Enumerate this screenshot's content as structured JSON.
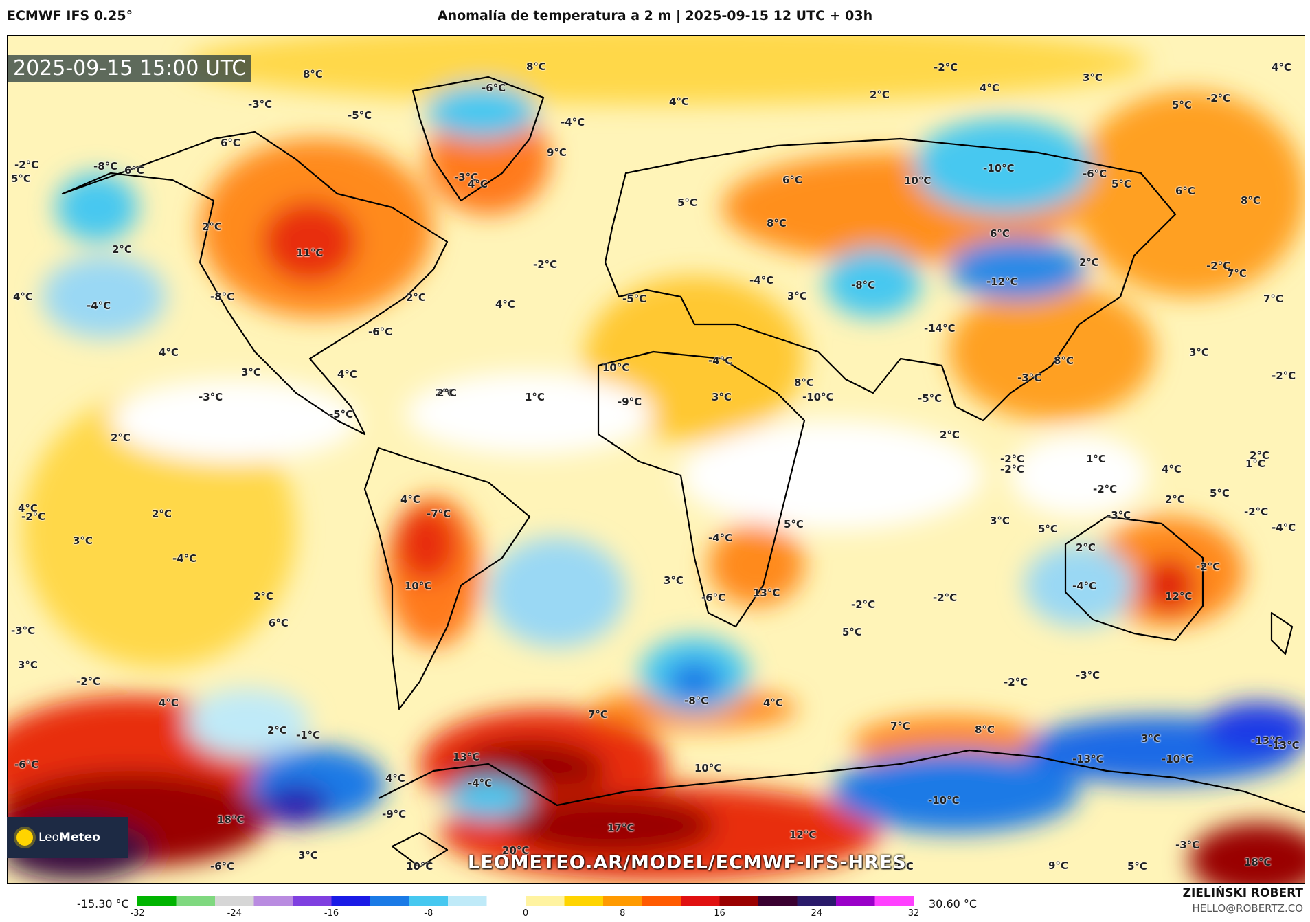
{
  "header": {
    "model": "ECMWF IFS 0.25°",
    "title": "Anomalía de temperatura a 2 m | 2025-09-15 12 UTC + 03h"
  },
  "map": {
    "valid_time": "2025-09-15 15:00 UTC",
    "watermark": "LEOMETEO.AR/MODEL/ECMWF-IFS-HRES",
    "labels": [
      {
        "text": "8°C"
      },
      {
        "text": "8°C"
      },
      {
        "text": "-6°C"
      },
      {
        "text": "-4°C"
      },
      {
        "text": "9°C"
      },
      {
        "text": "4°C"
      },
      {
        "text": "-2°C"
      },
      {
        "text": "2°C"
      },
      {
        "text": "4°C"
      },
      {
        "text": "3°C"
      },
      {
        "text": "5°C"
      },
      {
        "text": "-2°C"
      },
      {
        "text": "4°C"
      },
      {
        "text": "-3°C"
      },
      {
        "text": "-5°C"
      },
      {
        "text": "6°C"
      },
      {
        "text": "-2°C"
      },
      {
        "text": "-8°C"
      },
      {
        "text": "6°C"
      },
      {
        "text": "5°C"
      },
      {
        "text": "-3°C"
      },
      {
        "text": "4°C"
      },
      {
        "text": "5°C"
      },
      {
        "text": "6°C"
      },
      {
        "text": "2°C"
      },
      {
        "text": "11°C"
      },
      {
        "text": "2°C"
      },
      {
        "text": "-2°C"
      },
      {
        "text": "4°C"
      },
      {
        "text": "-4°C"
      },
      {
        "text": "-8°C"
      },
      {
        "text": "2°C"
      },
      {
        "text": "4°C"
      },
      {
        "text": "-6°C"
      },
      {
        "text": "4°C"
      },
      {
        "text": "3°C"
      },
      {
        "text": "4°C"
      },
      {
        "text": "2°C"
      },
      {
        "text": "-3°C"
      },
      {
        "text": "-5°C"
      },
      {
        "text": "2°C"
      },
      {
        "text": "1°C"
      },
      {
        "text": "2°C"
      },
      {
        "text": "10°C"
      },
      {
        "text": "-10°C"
      },
      {
        "text": "-6°C"
      },
      {
        "text": "5°C"
      },
      {
        "text": "6°C"
      },
      {
        "text": "8°C"
      },
      {
        "text": "8°C"
      },
      {
        "text": "6°C"
      },
      {
        "text": "-12°C"
      },
      {
        "text": "-8°C"
      },
      {
        "text": "2°C"
      },
      {
        "text": "-2°C"
      },
      {
        "text": "7°C"
      },
      {
        "text": "7°C"
      },
      {
        "text": "-5°C"
      },
      {
        "text": "-4°C"
      },
      {
        "text": "3°C"
      },
      {
        "text": "-14°C"
      },
      {
        "text": "8°C"
      },
      {
        "text": "3°C"
      },
      {
        "text": "-2°C"
      },
      {
        "text": "10°C"
      },
      {
        "text": "-4°C"
      },
      {
        "text": "-9°C"
      },
      {
        "text": "3°C"
      },
      {
        "text": "-10°C"
      },
      {
        "text": "-5°C"
      },
      {
        "text": "8°C"
      },
      {
        "text": "-3°C"
      },
      {
        "text": "2°C"
      },
      {
        "text": "-2°C"
      },
      {
        "text": "1°C"
      },
      {
        "text": "4°C"
      },
      {
        "text": "2°C"
      },
      {
        "text": "2°C"
      },
      {
        "text": "5°C"
      },
      {
        "text": "-4°C"
      },
      {
        "text": "-7°C"
      },
      {
        "text": "4°C"
      },
      {
        "text": "-2°C"
      },
      {
        "text": "-2°C"
      },
      {
        "text": "1°C"
      },
      {
        "text": "-2°C"
      },
      {
        "text": "3°C"
      },
      {
        "text": "2°C"
      },
      {
        "text": "-4°C"
      },
      {
        "text": "5°C"
      },
      {
        "text": "-6°C"
      },
      {
        "text": "3°C"
      },
      {
        "text": "-3°C"
      },
      {
        "text": "-2°C"
      },
      {
        "text": "12°C"
      },
      {
        "text": "-4°C"
      },
      {
        "text": "-2°C"
      },
      {
        "text": "4°C"
      },
      {
        "text": "-2°C"
      },
      {
        "text": "2°C"
      },
      {
        "text": "3°C"
      },
      {
        "text": "-4°C"
      },
      {
        "text": "10°C"
      },
      {
        "text": "13°C"
      },
      {
        "text": "2°C"
      },
      {
        "text": "6°C"
      },
      {
        "text": "-3°C"
      },
      {
        "text": "5°C"
      },
      {
        "text": "-2°C"
      },
      {
        "text": "5°C"
      },
      {
        "text": "-3°C"
      },
      {
        "text": "-2°C"
      },
      {
        "text": "3°C"
      },
      {
        "text": "-2°C"
      },
      {
        "text": "4°C"
      },
      {
        "text": "-8°C"
      },
      {
        "text": "4°C"
      },
      {
        "text": "7°C"
      },
      {
        "text": "7°C"
      },
      {
        "text": "8°C"
      },
      {
        "text": "3°C"
      },
      {
        "text": "-13°C"
      },
      {
        "text": "2°C"
      },
      {
        "text": "-1°C"
      },
      {
        "text": "-6°C"
      },
      {
        "text": "13°C"
      },
      {
        "text": "4°C"
      },
      {
        "text": "-4°C"
      },
      {
        "text": "10°C"
      },
      {
        "text": "-10°C"
      },
      {
        "text": "-13°C"
      },
      {
        "text": "-10°C"
      },
      {
        "text": "-13°C"
      },
      {
        "text": "-9°C"
      },
      {
        "text": "18°C"
      },
      {
        "text": "17°C"
      },
      {
        "text": "12°C"
      },
      {
        "text": "3°C"
      },
      {
        "text": "20°C"
      },
      {
        "text": "-6°C"
      },
      {
        "text": "10°C"
      },
      {
        "text": "2°C"
      },
      {
        "text": "9°C"
      },
      {
        "text": "5°C"
      },
      {
        "text": "-3°C"
      },
      {
        "text": "18°C"
      }
    ]
  },
  "legend": {
    "min_label": "-15.30 °C",
    "max_label": "30.60 °C",
    "ticks": [
      "-32",
      "-24",
      "-16",
      "-8",
      "0",
      "8",
      "16",
      "24",
      "32"
    ],
    "colors": [
      "#00b400",
      "#7fd87f",
      "#d6d6d6",
      "#b98be0",
      "#7f3fe0",
      "#1a1ae6",
      "#1a7ae6",
      "#46c8f0",
      "#bfeaf8",
      "#ffffff",
      "#fff3a0",
      "#ffd400",
      "#ff9a00",
      "#ff5a00",
      "#e01010",
      "#9a0000",
      "#3a0030",
      "#2a1a6a",
      "#9a00c8",
      "#ff40ff"
    ]
  },
  "branding": {
    "logo_text_1": "Leo",
    "logo_text_2": "Meteo",
    "author": "ZIELIŃSKI ROBERT",
    "email": "HELLO@ROBERTZ.CO"
  }
}
